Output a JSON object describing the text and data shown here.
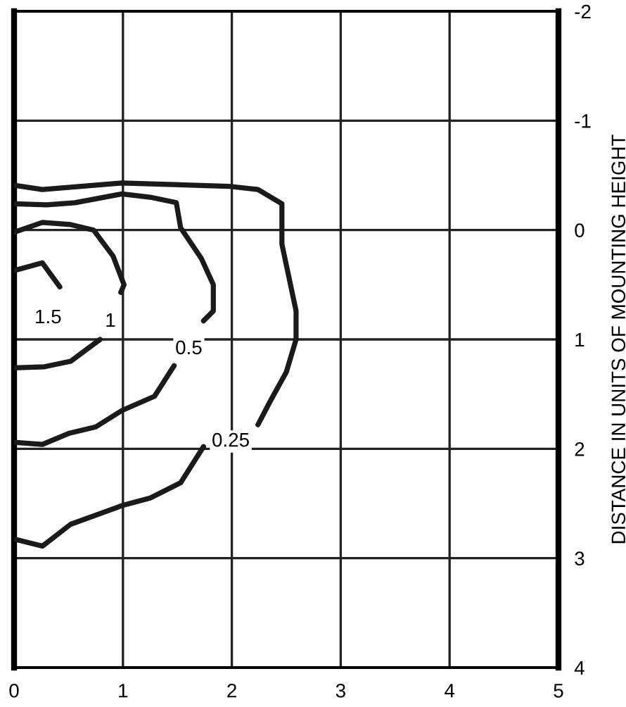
{
  "chart_data": {
    "type": "line",
    "ylabel": "DISTANCE IN UNITS OF MOUNTING HEIGHT",
    "xlim": [
      0,
      5
    ],
    "xticks": [
      0,
      1,
      2,
      3,
      4,
      5
    ],
    "ylim": [
      4,
      -2
    ],
    "yticks": [
      -2,
      -1,
      0,
      1,
      2,
      3,
      4
    ],
    "grid": true,
    "marker": "none",
    "line_style": "solid",
    "series": [
      {
        "name": "0.25",
        "color": "#1a1a1a",
        "x": [
          0,
          0.26,
          0.99,
          1.97,
          2.24,
          2.46,
          2.46,
          2.59,
          2.59,
          2.5,
          2.35,
          2.24,
          null,
          1.74,
          1.53,
          1.25,
          0.99,
          0.52,
          0.26,
          0.02
        ],
        "values": [
          -0.41,
          -0.37,
          -0.43,
          -0.4,
          -0.37,
          -0.24,
          0.13,
          0.74,
          1.0,
          1.3,
          1.57,
          1.78,
          null,
          1.98,
          2.31,
          2.45,
          2.52,
          2.69,
          2.89,
          2.83
        ]
      },
      {
        "name": "0.5",
        "color": "#1a1a1a",
        "x": [
          0,
          0.3,
          0.56,
          0.99,
          1.25,
          1.49,
          1.53,
          1.72,
          1.83,
          1.83,
          1.74,
          null,
          1.47,
          1.29,
          0.99,
          0.75,
          0.5,
          0.26,
          0
        ],
        "values": [
          -0.24,
          -0.23,
          -0.25,
          -0.33,
          -0.3,
          -0.25,
          -0.02,
          0.26,
          0.5,
          0.74,
          0.83,
          null,
          1.24,
          1.52,
          1.65,
          1.8,
          1.86,
          1.96,
          1.94
        ]
      },
      {
        "name": "1",
        "color": "#1a1a1a",
        "x": [
          0,
          0.26,
          0.52,
          0.73,
          0.91,
          1.01,
          0.98,
          null,
          0.79,
          0.52,
          0.28,
          0
        ],
        "values": [
          0.02,
          -0.07,
          -0.05,
          0,
          0.24,
          0.5,
          0.57,
          null,
          1.0,
          1.2,
          1.25,
          1.26
        ]
      },
      {
        "name": "1.5",
        "color": "#1a1a1a",
        "x": [
          0,
          0.26,
          0.42
        ],
        "values": [
          0.37,
          0.3,
          0.52
        ]
      }
    ]
  }
}
